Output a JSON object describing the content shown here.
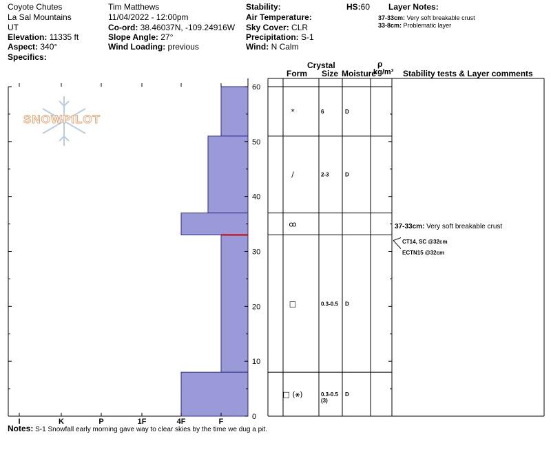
{
  "header": {
    "location": "Coyote Chutes",
    "range": "La Sal Mountains",
    "state": "UT",
    "elevation_label": "Elevation:",
    "elevation": "11335 ft",
    "aspect_label": "Aspect:",
    "aspect": "340°",
    "specifics_label": "Specifics:",
    "observer": "Tim Matthews",
    "datetime": "11/04/2022 - 12:00pm",
    "coord_label": "Co-ord:",
    "coord": "38.46037N, -109.24916W",
    "slope_label": "Slope Angle:",
    "slope": "27°",
    "wind_loading_label": "Wind Loading:",
    "wind_loading": "previous",
    "stability_label": "Stability:",
    "air_temp_label": "Air Temperature:",
    "sky_cover_label": "Sky Cover:",
    "sky_cover": "CLR",
    "precip_label": "Precipitation:",
    "precip": "S-1",
    "wind_label": "Wind:",
    "wind": "N Calm",
    "hs_label": "HS:",
    "hs": "60",
    "layer_notes_title": "Layer Notes:",
    "layer_notes": [
      {
        "range": "37-33cm:",
        "text": "Very soft breakable crust"
      },
      {
        "range": "33-8cm:",
        "text": "Problematic layer"
      }
    ]
  },
  "logo": {
    "text": "SNOWPILOT"
  },
  "columns": {
    "crystal": "Crystal",
    "form": "Form",
    "size": "Size",
    "moisture": "Moisture",
    "rho": "ρ",
    "density_unit": "kg/m³",
    "comments": "Stability tests & Layer comments"
  },
  "height_ticks": [
    "60",
    "50",
    "40",
    "30",
    "20",
    "10",
    "0"
  ],
  "hardness_ticks": [
    "I",
    "K",
    "P",
    "1F",
    "4F",
    "F"
  ],
  "layers": [
    {
      "top": 60,
      "bottom": 51,
      "form": "*",
      "size": "6",
      "moisture": "D"
    },
    {
      "top": 51,
      "bottom": 37,
      "form": "/",
      "size": "2-3",
      "moisture": "D"
    },
    {
      "top": 37,
      "bottom": 33,
      "form": "ꝏ",
      "size": "",
      "moisture": ""
    },
    {
      "top": 33,
      "bottom": 8,
      "form": "□",
      "size": "0.3-0.5",
      "moisture": "D"
    },
    {
      "top": 8,
      "bottom": 0,
      "form": "□ (⚹)",
      "size": "0.3-0.5",
      "size_extra": "(3)",
      "moisture": "D"
    }
  ],
  "chart_data": {
    "type": "bar",
    "title": "",
    "xlabel": "",
    "ylabel": "",
    "y_range_cm": [
      0,
      60
    ],
    "hardness_scale": [
      "I",
      "K",
      "P",
      "1F",
      "4F",
      "F"
    ],
    "profile": [
      {
        "top_cm": 60,
        "bottom_cm": 51,
        "hardness": "F"
      },
      {
        "top_cm": 51,
        "bottom_cm": 37,
        "hardness": "4F-F"
      },
      {
        "top_cm": 37,
        "bottom_cm": 33,
        "hardness": "4F"
      },
      {
        "top_cm": 33,
        "bottom_cm": 8,
        "hardness": "F"
      },
      {
        "top_cm": 8,
        "bottom_cm": 0,
        "hardness": "4F"
      }
    ],
    "failure_depth_cm": 33
  },
  "comments": [
    {
      "bold": "37-33cm:",
      "text": "Very soft breakable crust"
    }
  ],
  "tests": [
    "CT14, SC @32cm",
    "ECTN15 @32cm"
  ],
  "notes": {
    "label": "Notes:",
    "text": "S-1 Snowfall early morning gave way to clear skies by the time we dug a pit."
  },
  "colors": {
    "layer_fill": "#9a9ad8",
    "layer_stroke": "#2a2a88",
    "failure": "#cc0000"
  }
}
